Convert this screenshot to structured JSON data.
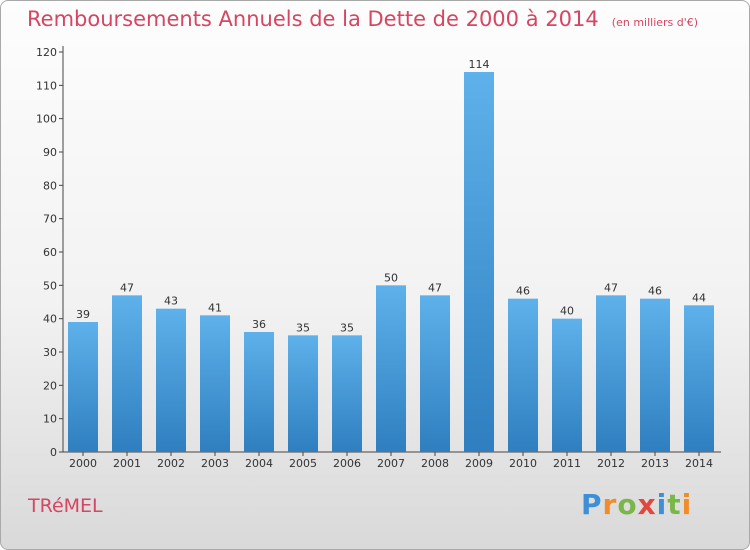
{
  "chart_data": {
    "type": "bar",
    "title": "Remboursements Annuels de la Dette de 2000 à 2014",
    "subtitle": "(en milliers d'€)",
    "categories": [
      "2000",
      "2001",
      "2002",
      "2003",
      "2004",
      "2005",
      "2006",
      "2007",
      "2008",
      "2009",
      "2010",
      "2011",
      "2012",
      "2013",
      "2014"
    ],
    "values": [
      39,
      47,
      43,
      41,
      36,
      35,
      35,
      50,
      47,
      114,
      46,
      40,
      47,
      46,
      44
    ],
    "ylim": [
      0,
      120
    ],
    "yticks": [
      0,
      10,
      20,
      30,
      40,
      50,
      60,
      70,
      80,
      90,
      100,
      110,
      120
    ],
    "grid": false,
    "bar_color": "#4fa3e0"
  },
  "commune": "TRéMEL",
  "logo": {
    "letters": [
      "P",
      "r",
      "o",
      "x",
      "i",
      "t",
      "i"
    ],
    "colors": [
      "#3d8fd6",
      "#f28c28",
      "#7ab648",
      "#e2463d",
      "#3d8fd6",
      "#7ab648",
      "#f28c28"
    ]
  }
}
